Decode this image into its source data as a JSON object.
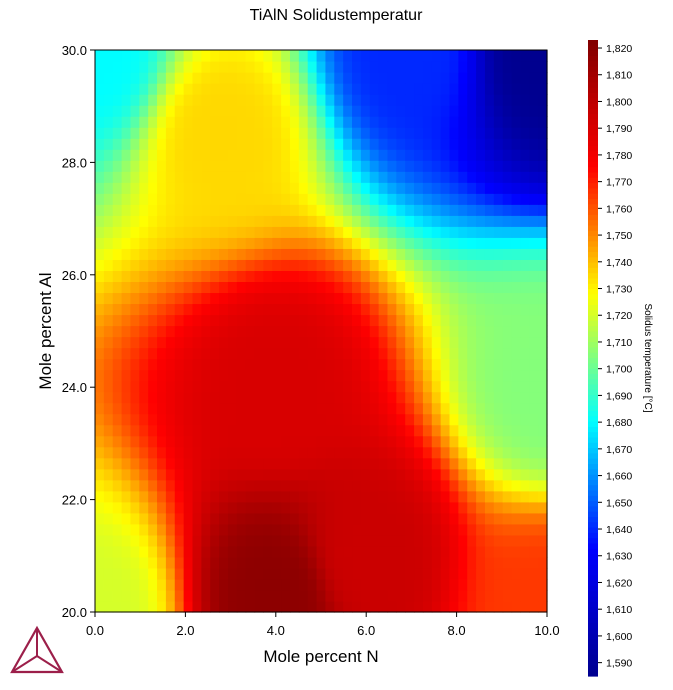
{
  "chart_data": {
    "type": "heatmap",
    "title": "TiAlN Solidustemperatur",
    "xlabel": "Mole percent N",
    "ylabel": "Mole percent Al",
    "xlim": [
      0.0,
      10.0
    ],
    "ylim": [
      20.0,
      30.0
    ],
    "x_ticks": [
      "0.0",
      "2.0",
      "4.0",
      "6.0",
      "8.0",
      "10.0"
    ],
    "y_ticks": [
      "20.0",
      "22.0",
      "24.0",
      "26.0",
      "28.0",
      "30.0"
    ],
    "grid_resolution": [
      51,
      51
    ],
    "colorbar": {
      "label": "Solidus temperature [°C]",
      "range": [
        1585,
        1823
      ],
      "ticks": [
        "1,590",
        "1,600",
        "1,610",
        "1,620",
        "1,630",
        "1,640",
        "1,650",
        "1,660",
        "1,670",
        "1,680",
        "1,690",
        "1,700",
        "1,710",
        "1,720",
        "1,730",
        "1,740",
        "1,750",
        "1,760",
        "1,770",
        "1,780",
        "1,790",
        "1,800",
        "1,810",
        "1,820"
      ],
      "colormap": [
        "#00008f",
        "#0000ff",
        "#00ffff",
        "#ffff00",
        "#ff0000",
        "#800000"
      ]
    },
    "sample_values": [
      {
        "x": 0.0,
        "y": 20.0,
        "temperature": 1720
      },
      {
        "x": 0.0,
        "y": 30.0,
        "temperature": 1680
      },
      {
        "x": 2.8,
        "y": 28.5,
        "temperature": 1735
      },
      {
        "x": 4.0,
        "y": 20.3,
        "temperature": 1818
      },
      {
        "x": 4.0,
        "y": 24.0,
        "temperature": 1790
      },
      {
        "x": 6.0,
        "y": 21.0,
        "temperature": 1795
      },
      {
        "x": 10.0,
        "y": 20.0,
        "temperature": 1765
      },
      {
        "x": 10.0,
        "y": 24.0,
        "temperature": 1705
      },
      {
        "x": 7.0,
        "y": 30.0,
        "temperature": 1640
      },
      {
        "x": 10.0,
        "y": 30.0,
        "temperature": 1585
      }
    ]
  }
}
